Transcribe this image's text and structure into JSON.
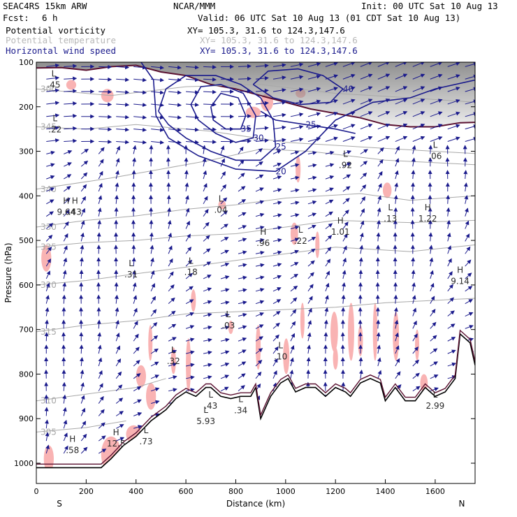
{
  "header": {
    "model": "SEAC4RS 15km ARW",
    "org": "NCAR/MMM",
    "init": "Init: 00 UTC Sat 10 Aug 13",
    "fcst_label": "Fcst:",
    "fcst_value": "6 h",
    "valid": "Valid: 06 UTC Sat 10 Aug 13 (01 CDT Sat 10 Aug 13)"
  },
  "legend": [
    {
      "name": "Potential vorticity",
      "xy": "",
      "color": "#000000"
    },
    {
      "name": "Potential temperature",
      "xy": "XY= 105.3, 31.6 to 124.3,147.6",
      "color": "#b8b8b8"
    },
    {
      "name": "Horizontal wind speed",
      "xy": "XY= 105.3, 31.6 to 124.3,147.6",
      "color": "#1a1a8c"
    }
  ],
  "xy_top": "XY= 105.3, 31.6 to 124.3,147.6",
  "chart_data": {
    "type": "cross-section",
    "xlabel": "Distance (km)",
    "ylabel": "Pressure (hPa)",
    "xlim": [
      0,
      1760
    ],
    "ylim": [
      1050,
      100
    ],
    "x_ticks": [
      0,
      200,
      400,
      600,
      800,
      1000,
      1200,
      1400,
      1600
    ],
    "x_tick_labels": [
      "0",
      "200",
      "400",
      "600",
      "800",
      "1000",
      "1200",
      "1400",
      "1600"
    ],
    "y_ticks": [
      100,
      200,
      300,
      400,
      500,
      600,
      700,
      800,
      900,
      1000
    ],
    "y_tick_labels": [
      "100",
      "200",
      "300",
      "400",
      "500",
      "600",
      "700",
      "800",
      "900",
      "1000"
    ],
    "end_labels": {
      "left": "S",
      "right": "N"
    },
    "terrain": [
      [
        0,
        1010
      ],
      [
        260,
        1010
      ],
      [
        300,
        990
      ],
      [
        350,
        960
      ],
      [
        400,
        940
      ],
      [
        460,
        905
      ],
      [
        520,
        880
      ],
      [
        560,
        855
      ],
      [
        600,
        840
      ],
      [
        640,
        850
      ],
      [
        680,
        830
      ],
      [
        700,
        830
      ],
      [
        740,
        850
      ],
      [
        780,
        855
      ],
      [
        820,
        850
      ],
      [
        860,
        850
      ],
      [
        880,
        830
      ],
      [
        900,
        900
      ],
      [
        940,
        850
      ],
      [
        980,
        820
      ],
      [
        1010,
        810
      ],
      [
        1040,
        840
      ],
      [
        1080,
        830
      ],
      [
        1120,
        830
      ],
      [
        1160,
        850
      ],
      [
        1200,
        830
      ],
      [
        1240,
        840
      ],
      [
        1260,
        850
      ],
      [
        1300,
        820
      ],
      [
        1340,
        810
      ],
      [
        1380,
        820
      ],
      [
        1400,
        860
      ],
      [
        1440,
        830
      ],
      [
        1480,
        860
      ],
      [
        1520,
        860
      ],
      [
        1560,
        830
      ],
      [
        1600,
        850
      ],
      [
        1640,
        840
      ],
      [
        1680,
        810
      ],
      [
        1700,
        710
      ],
      [
        1740,
        730
      ],
      [
        1760,
        780
      ]
    ],
    "tropopause": [
      [
        0,
        113
      ],
      [
        100,
        112
      ],
      [
        200,
        118
      ],
      [
        300,
        110
      ],
      [
        400,
        107
      ],
      [
        500,
        122
      ],
      [
        600,
        130
      ],
      [
        700,
        150
      ],
      [
        800,
        160
      ],
      [
        900,
        175
      ],
      [
        1000,
        190
      ],
      [
        1100,
        205
      ],
      [
        1200,
        215
      ],
      [
        1300,
        225
      ],
      [
        1400,
        240
      ],
      [
        1500,
        245
      ],
      [
        1600,
        245
      ],
      [
        1700,
        236
      ],
      [
        1760,
        235
      ]
    ],
    "theta_contours": [
      {
        "label": "300",
        "points": [
          [
            0,
            160
          ],
          [
            300,
            175
          ],
          [
            600,
            155
          ],
          [
            900,
            150
          ],
          [
            1200,
            170
          ],
          [
            1500,
            180
          ],
          [
            1760,
            190
          ]
        ]
      },
      {
        "label": "345",
        "points": [
          [
            0,
            245
          ],
          [
            200,
            250
          ],
          [
            400,
            240
          ],
          [
            700,
            255
          ],
          [
            1000,
            280
          ],
          [
            1300,
            290
          ],
          [
            1600,
            300
          ],
          [
            1760,
            305
          ]
        ]
      },
      {
        "label": "340",
        "points": [
          [
            0,
            385
          ],
          [
            300,
            360
          ],
          [
            500,
            340
          ],
          [
            700,
            320
          ],
          [
            900,
            295
          ],
          [
            1100,
            300
          ],
          [
            1400,
            320
          ],
          [
            1760,
            330
          ]
        ]
      },
      {
        "label": "330",
        "points": [
          [
            0,
            470
          ],
          [
            200,
            455
          ],
          [
            400,
            445
          ],
          [
            600,
            430
          ],
          [
            800,
            420
          ],
          [
            1000,
            405
          ],
          [
            1300,
            395
          ],
          [
            1500,
            410
          ],
          [
            1760,
            400
          ]
        ]
      },
      {
        "label": "325",
        "points": [
          [
            0,
            515
          ],
          [
            200,
            505
          ],
          [
            400,
            500
          ],
          [
            600,
            490
          ],
          [
            800,
            485
          ],
          [
            1000,
            470
          ],
          [
            1200,
            455
          ],
          [
            1500,
            460
          ],
          [
            1760,
            455
          ]
        ]
      },
      {
        "label": "320",
        "points": [
          [
            0,
            600
          ],
          [
            200,
            590
          ],
          [
            400,
            575
          ],
          [
            600,
            560
          ],
          [
            800,
            545
          ],
          [
            1000,
            530
          ],
          [
            1200,
            515
          ],
          [
            1500,
            525
          ],
          [
            1760,
            510
          ]
        ]
      },
      {
        "label": "315",
        "points": [
          [
            0,
            705
          ],
          [
            200,
            690
          ],
          [
            400,
            680
          ],
          [
            600,
            665
          ],
          [
            800,
            660
          ],
          [
            1000,
            655
          ],
          [
            1200,
            650
          ],
          [
            1400,
            640
          ],
          [
            1760,
            630
          ]
        ]
      },
      {
        "label": "310",
        "points": [
          [
            0,
            860
          ],
          [
            200,
            845
          ],
          [
            400,
            830
          ],
          [
            520,
            810
          ]
        ]
      },
      {
        "label": "305",
        "points": [
          [
            0,
            930
          ],
          [
            200,
            920
          ],
          [
            360,
            905
          ]
        ]
      }
    ],
    "wind_contours": [
      {
        "label": "25",
        "points": [
          [
            490,
            210
          ],
          [
            520,
            160
          ],
          [
            600,
            130
          ],
          [
            720,
            130
          ],
          [
            820,
            150
          ],
          [
            900,
            180
          ],
          [
            950,
            230
          ],
          [
            960,
            290
          ],
          [
            900,
            320
          ],
          [
            800,
            320
          ],
          [
            700,
            300
          ],
          [
            600,
            270
          ],
          [
            530,
            240
          ],
          [
            490,
            210
          ]
        ]
      },
      {
        "label": "30",
        "points": [
          [
            620,
            195
          ],
          [
            660,
            155
          ],
          [
            740,
            150
          ],
          [
            830,
            170
          ],
          [
            880,
            220
          ],
          [
            870,
            270
          ],
          [
            800,
            280
          ],
          [
            720,
            260
          ],
          [
            650,
            230
          ],
          [
            620,
            195
          ]
        ]
      },
      {
        "label": "35",
        "points": [
          [
            700,
            200
          ],
          [
            740,
            170
          ],
          [
            810,
            180
          ],
          [
            840,
            220
          ],
          [
            820,
            250
          ],
          [
            760,
            250
          ],
          [
            710,
            230
          ],
          [
            700,
            200
          ]
        ]
      },
      {
        "label": "20",
        "points": [
          [
            420,
            100
          ],
          [
            470,
            140
          ],
          [
            480,
            220
          ],
          [
            530,
            270
          ],
          [
            650,
            310
          ],
          [
            800,
            340
          ],
          [
            960,
            345
          ],
          [
            1080,
            300
          ],
          [
            1200,
            230
          ],
          [
            1350,
            190
          ],
          [
            1500,
            180
          ],
          [
            1600,
            160
          ],
          [
            1760,
            140
          ]
        ]
      },
      {
        "label": "40",
        "points": [
          [
            870,
            150
          ],
          [
            930,
            120
          ],
          [
            1050,
            115
          ],
          [
            1150,
            130
          ],
          [
            1230,
            160
          ],
          [
            1180,
            190
          ],
          [
            1060,
            195
          ],
          [
            950,
            180
          ],
          [
            870,
            150
          ]
        ]
      },
      {
        "label": "25",
        "points": [
          [
            900,
            210
          ],
          [
            960,
            230
          ],
          [
            1080,
            240
          ],
          [
            1200,
            250
          ],
          [
            1280,
            260
          ]
        ]
      }
    ],
    "pv_labels": [
      {
        "kind": "L",
        "value": ".45",
        "x": 70,
        "y": 145
      },
      {
        "kind": "L",
        "value": ".22",
        "x": 75,
        "y": 245
      },
      {
        "kind": "H",
        "value": "9.64",
        "x": 120,
        "y": 430
      },
      {
        "kind": "H",
        "value": ".43",
        "x": 155,
        "y": 430
      },
      {
        "kind": "L",
        "value": ".31",
        "x": 380,
        "y": 570
      },
      {
        "kind": "L",
        "value": ".18",
        "x": 620,
        "y": 565
      },
      {
        "kind": "L",
        "value": ".04",
        "x": 740,
        "y": 425
      },
      {
        "kind": "H",
        "value": ".96",
        "x": 910,
        "y": 500
      },
      {
        "kind": "L",
        "value": ".22",
        "x": 1060,
        "y": 495
      },
      {
        "kind": "H",
        "value": "1.01",
        "x": 1220,
        "y": 475
      },
      {
        "kind": "L",
        "value": ".13",
        "x": 1420,
        "y": 445
      },
      {
        "kind": "H",
        "value": "1.22",
        "x": 1570,
        "y": 445
      },
      {
        "kind": "H",
        "value": "9.14",
        "x": 1700,
        "y": 585
      },
      {
        "kind": "L",
        "value": ".92",
        "x": 1240,
        "y": 325
      },
      {
        "kind": "L",
        "value": ".06",
        "x": 1600,
        "y": 305
      },
      {
        "kind": "L",
        "value": ".03",
        "x": 770,
        "y": 685
      },
      {
        "kind": "L",
        "value": ".32",
        "x": 550,
        "y": 765
      },
      {
        "kind": "L",
        "value": ".10",
        "x": 980,
        "y": 755
      },
      {
        "kind": "L",
        "value": ".43",
        "x": 700,
        "y": 865
      },
      {
        "kind": "H",
        "value": ".58",
        "x": 145,
        "y": 965
      },
      {
        "kind": "H",
        "value": "12.5",
        "x": 320,
        "y": 950
      },
      {
        "kind": "L",
        "value": ".73",
        "x": 440,
        "y": 945
      },
      {
        "kind": "L",
        "value": "2.99",
        "x": 1600,
        "y": 865
      },
      {
        "kind": "L",
        "value": "5.93",
        "x": 680,
        "y": 900
      },
      {
        "kind": "L",
        "value": ".34",
        "x": 820,
        "y": 875
      }
    ],
    "pv_shade_patches": [
      [
        120,
        140,
        40,
        22
      ],
      [
        260,
        160,
        50,
        30
      ],
      [
        840,
        200,
        60,
        25
      ],
      [
        900,
        170,
        50,
        40
      ],
      [
        1040,
        160,
        40,
        20
      ],
      [
        1390,
        370,
        35,
        35
      ],
      [
        1040,
        310,
        20,
        60
      ],
      [
        20,
        510,
        40,
        60
      ],
      [
        730,
        410,
        30,
        20
      ],
      [
        1020,
        460,
        30,
        50
      ],
      [
        1120,
        480,
        15,
        60
      ],
      [
        1060,
        640,
        15,
        80
      ],
      [
        1180,
        660,
        30,
        90
      ],
      [
        1250,
        640,
        25,
        130
      ],
      [
        1290,
        690,
        20,
        70
      ],
      [
        1350,
        640,
        18,
        130
      ],
      [
        1430,
        660,
        25,
        110
      ],
      [
        1520,
        700,
        15,
        70
      ],
      [
        620,
        610,
        20,
        50
      ],
      [
        770,
        680,
        20,
        30
      ],
      [
        450,
        690,
        15,
        80
      ],
      [
        540,
        740,
        20,
        60
      ],
      [
        600,
        720,
        20,
        120
      ],
      [
        880,
        690,
        20,
        100
      ],
      [
        990,
        720,
        25,
        80
      ],
      [
        1190,
        740,
        20,
        50
      ],
      [
        400,
        780,
        40,
        50
      ],
      [
        440,
        820,
        40,
        60
      ],
      [
        1540,
        800,
        30,
        40
      ],
      [
        260,
        940,
        80,
        80
      ],
      [
        360,
        915,
        60,
        40
      ],
      [
        30,
        960,
        40,
        60
      ],
      [
        120,
        1030,
        40,
        20
      ]
    ]
  }
}
